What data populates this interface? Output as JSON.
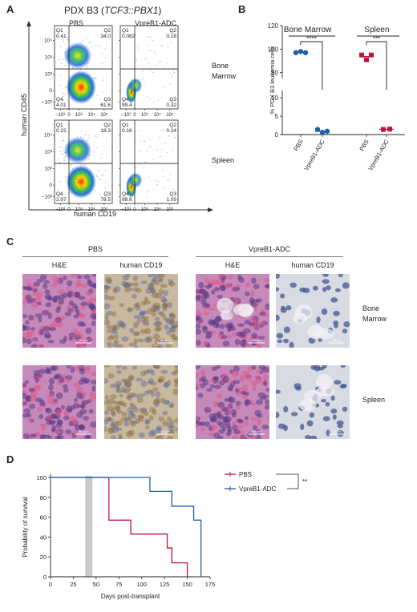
{
  "panelA": {
    "letter": "A",
    "title_prefix": "PDX B3 (",
    "title_italic": "TCF3::PBX1",
    "title_suffix": ")",
    "col_labels": [
      "PBS",
      "VpreB1-ADC"
    ],
    "row_labels": [
      [
        "Bone",
        "Marrow"
      ],
      [
        "Spleen"
      ]
    ],
    "x_axis_label": "human CD19",
    "y_axis_label": "human CD45",
    "y_ticks": [
      "10⁴",
      "10³",
      "10²",
      "0",
      "−10²"
    ],
    "x_ticks": [
      "−10³",
      "0",
      "10³",
      "10⁴",
      "10⁵"
    ],
    "quadrant_names": [
      "Q1",
      "Q2",
      "Q3",
      "Q4"
    ],
    "plots": [
      {
        "q1": "0.41",
        "q2": "34.0",
        "q3": "61.6",
        "q4": "4.01"
      },
      {
        "q1": "0.082",
        "q2": "0.18",
        "q3": "0.32",
        "q4": "99.4"
      },
      {
        "q1": "0.22",
        "q2": "18.3",
        "q3": "78.5",
        "q4": "2.97"
      },
      {
        "q1": "0.16",
        "q2": "0.14",
        "q3": "1.09",
        "q4": "98.6"
      }
    ]
  },
  "panelB": {
    "letter": "B",
    "y_axis_label": "% PDX B3 leukemia cells",
    "group_labels": [
      "Bone Marrow",
      "Spleen"
    ],
    "significance": [
      "****",
      "***"
    ],
    "x_labels": [
      "PBS",
      "VpreB1-ADC",
      "PBS",
      "VpreB1-ADC"
    ],
    "y_ticks": [
      "120",
      "100",
      "80",
      "10",
      "5",
      "0"
    ],
    "chart_data": {
      "type": "scatter",
      "x_labels": [
        "PBS",
        "VpreB1-ADC",
        "PBS",
        "VpreB1-ADC"
      ],
      "groups": [
        "Bone Marrow",
        "Bone Marrow",
        "Spleen",
        "Spleen"
      ],
      "series": [
        {
          "name": "Bone Marrow PBS",
          "values": [
            97,
            98,
            97
          ],
          "mean": 97.3
        },
        {
          "name": "Bone Marrow VpreB1-ADC",
          "values": [
            1.4,
            0.6,
            0.9
          ],
          "mean": 0.9
        },
        {
          "name": "Spleen PBS",
          "values": [
            95,
            91,
            95
          ],
          "mean": 93.7
        },
        {
          "name": "Spleen VpreB1-ADC",
          "values": [
            1.4,
            1.5
          ],
          "mean": 1.45
        }
      ],
      "y_axis_breaks": [
        [
          0,
          12
        ],
        [
          75,
          120
        ]
      ],
      "colors": {
        "Bone Marrow": "#1f5fa8",
        "Spleen": "#c0143c"
      }
    }
  },
  "panelC": {
    "letter": "C",
    "group_headers": [
      "PBS",
      "VpreB1-ADC"
    ],
    "column_headers": [
      "H&E",
      "human CD19",
      "H&E",
      "human CD19"
    ],
    "row_labels": [
      [
        "Bone",
        "Marrow"
      ],
      [
        "Spleen"
      ]
    ],
    "scale_bar_label": "50 μm",
    "stain_colors": {
      "he": "#c68aba",
      "cd19": "#c9b8a0",
      "neg": "#d9dbe3"
    }
  },
  "panelD": {
    "letter": "D",
    "x_axis_label": "Days post-transplant",
    "y_axis_label": "Probability of survival",
    "legend": [
      "PBS",
      "VpreB1-ADC"
    ],
    "significance": "**",
    "chart_data": {
      "type": "line",
      "step": true,
      "xlim": [
        0,
        175
      ],
      "ylim": [
        0,
        100
      ],
      "x_ticks": [
        0,
        25,
        50,
        75,
        100,
        125,
        150,
        175
      ],
      "y_ticks": [
        0,
        20,
        40,
        60,
        80,
        100
      ],
      "shaded_interval": [
        38,
        46
      ],
      "series": [
        {
          "name": "PBS",
          "color": "#c0143c",
          "points": [
            [
              0,
              100
            ],
            [
              64,
              100
            ],
            [
              64,
              57
            ],
            [
              88,
              57
            ],
            [
              88,
              43
            ],
            [
              128,
              43
            ],
            [
              128,
              29
            ],
            [
              133,
              29
            ],
            [
              133,
              14
            ],
            [
              150,
              14
            ],
            [
              150,
              0
            ]
          ]
        },
        {
          "name": "VpreB1-ADC",
          "color": "#1f5fa8",
          "points": [
            [
              0,
              100
            ],
            [
              109,
              100
            ],
            [
              109,
              86
            ],
            [
              133,
              86
            ],
            [
              133,
              71
            ],
            [
              157,
              71
            ],
            [
              157,
              57
            ],
            [
              165,
              57
            ],
            [
              165,
              0
            ]
          ]
        }
      ]
    }
  }
}
